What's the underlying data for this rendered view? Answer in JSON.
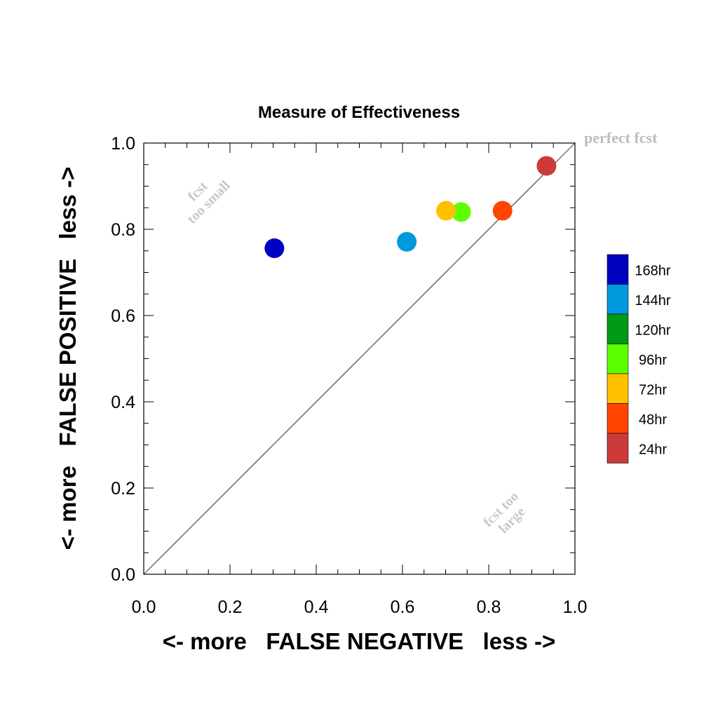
{
  "chart_data": {
    "type": "scatter",
    "title": "Measure of Effectiveness",
    "xlabel": "<- more   FALSE NEGATIVE   less ->",
    "ylabel": "<- more   FALSE POSITIVE   less ->",
    "xlim": [
      0.0,
      1.0
    ],
    "ylim": [
      0.0,
      1.0
    ],
    "x_ticks": [
      "0.0",
      "0.2",
      "0.4",
      "0.6",
      "0.8",
      "1.0"
    ],
    "y_ticks": [
      "0.0",
      "0.2",
      "0.4",
      "0.6",
      "0.8",
      "1.0"
    ],
    "grid": false,
    "legend_position": "right",
    "reference_line": "diagonal y = x",
    "annotations": {
      "top_right": "perfect fcst",
      "upper_left": [
        "fcst",
        "too small"
      ],
      "lower_right": [
        "fcst too",
        "large"
      ]
    },
    "series": [
      {
        "name": "168hr",
        "color": "#0000c0",
        "x": 0.303,
        "y": 0.756
      },
      {
        "name": "144hr",
        "color": "#0099dd",
        "x": 0.61,
        "y": 0.771
      },
      {
        "name": "120hr",
        "color": "#009a17",
        "x": null,
        "y": null
      },
      {
        "name": "96hr",
        "color": "#5cff00",
        "x": 0.736,
        "y": 0.84
      },
      {
        "name": "72hr",
        "color": "#ffc000",
        "x": 0.701,
        "y": 0.843
      },
      {
        "name": "48hr",
        "color": "#ff4500",
        "x": 0.832,
        "y": 0.843
      },
      {
        "name": "24hr",
        "color": "#cc3a3a",
        "x": 0.934,
        "y": 0.947
      }
    ]
  }
}
